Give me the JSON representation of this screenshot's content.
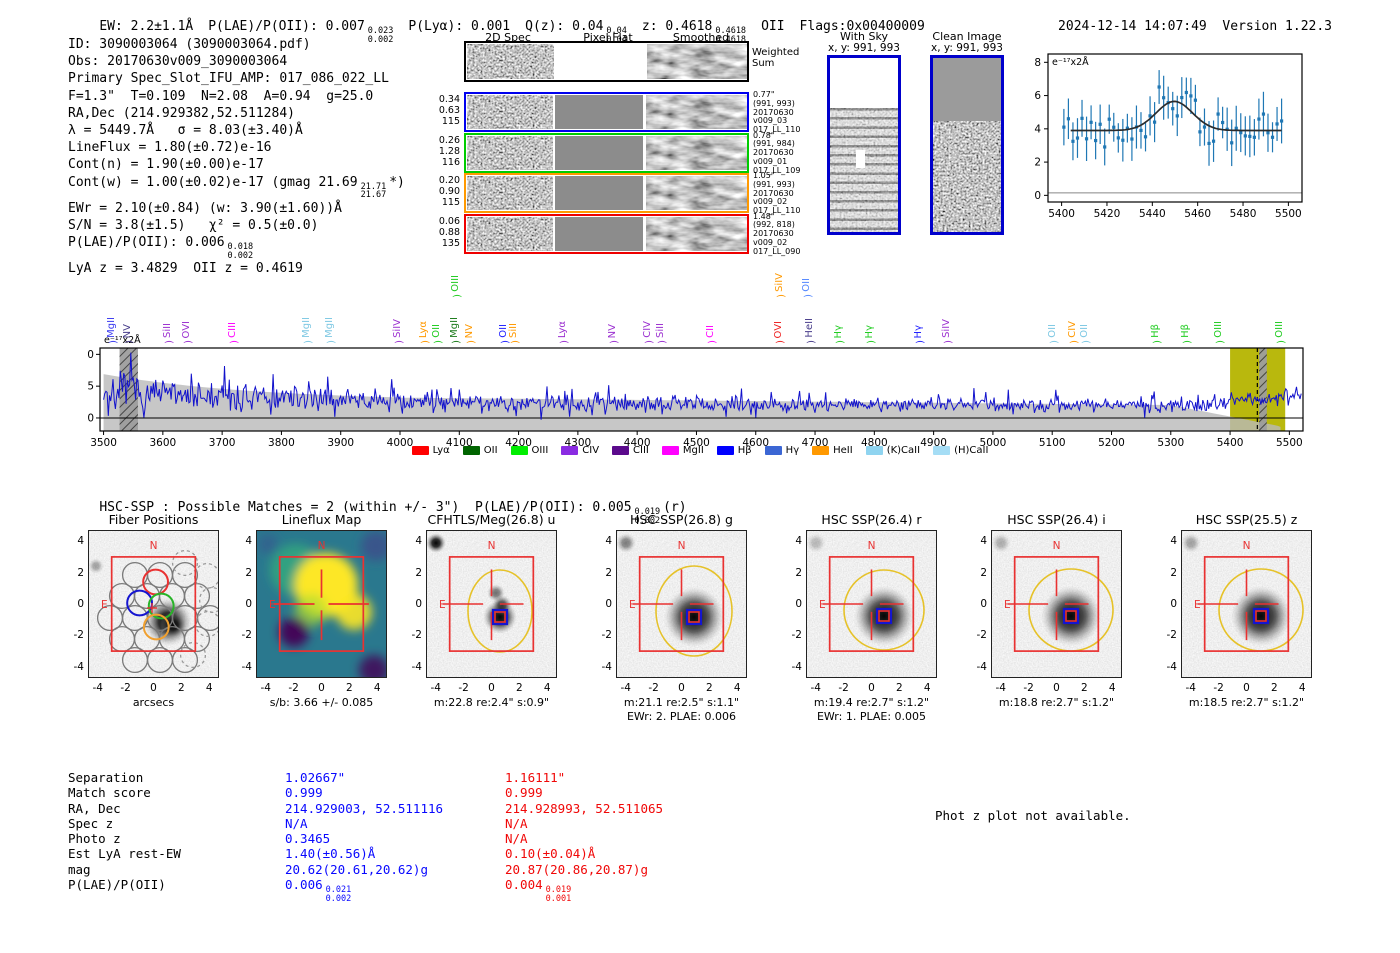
{
  "header": {
    "ew": "EW: 2.2±1.1Å",
    "plae": "P(LAE)/P(OII): 0.007",
    "plae_sup": "0.023",
    "plae_sub": "0.002",
    "plya": "P(Lyα): 0.001",
    "qz": "Q(z): 0.04",
    "qz_sup": "0.04",
    "qz_sub": "0.04",
    "z": "z: 0.4618",
    "z_sup": "0.4618",
    "z_sub": "0.4618",
    "z_class": "OII",
    "flags": "Flags:0x00400009",
    "datetime": "2024-12-14 14:07:49",
    "version": "Version 1.22.3"
  },
  "info": {
    "line1": "ID: 3090003064 (3090003064.pdf)",
    "line2": "Obs: 20170630v009_3090003064",
    "line3": "Primary Spec_Slot_IFU_AMP: 017_086_022_LL",
    "line4": "F=1.3\"  T=0.109  N=2.08  A=0.94  g=25.0",
    "line5": "RA,Dec (214.929382,52.511284)",
    "line6": "λ = 5449.7Å   σ = 8.03(±3.40)Å",
    "line7": "LineFlux = 1.80(±0.72)e-16",
    "line8": "Cont(n) = 1.90(±0.00)e-17",
    "line9a": "Cont(w) = 1.00(±0.02)e-17 (gmag 21.69",
    "line9_sup": "21.71",
    "line9_sub": "21.67",
    "line9b": "*)",
    "line10": "EWr = 2.10(±0.84) (w: 3.90(±1.60))Å",
    "line11": "S/N = 3.8(±1.5)   χ² = 0.5(±0.0)",
    "line12a": "P(LAE)/P(OII): 0.006",
    "line12_sup": "0.018",
    "line12_sub": "0.002",
    "line13": "LyA z = 3.4829  OII z = 0.4619"
  },
  "spec2d": {
    "col1": "2D Spec",
    "col2": "Pixel Flat",
    "col3": "Smoothed",
    "weighted1": "Weighted",
    "weighted2": "Sum",
    "rows": [
      {
        "color": "#0000ee",
        "left": [
          "0.34",
          "0.63",
          "115"
        ],
        "right": [
          "0.77\"",
          "(991, 993)",
          "20170630",
          "v009_03",
          "017_LL_110"
        ]
      },
      {
        "color": "#00cc00",
        "left": [
          "0.26",
          "1.28",
          "116"
        ],
        "right": [
          "0.78\"",
          "(991, 984)",
          "20170630",
          "v009_01",
          "017_LL_109"
        ]
      },
      {
        "color": "#ff9900",
        "left": [
          "0.20",
          "0.90",
          "115"
        ],
        "right": [
          "1.05\"",
          "(991, 993)",
          "20170630",
          "v009_02",
          "017_LL_110"
        ]
      },
      {
        "color": "#ee0000",
        "left": [
          "0.06",
          "0.88",
          "135"
        ],
        "right": [
          "1.48\"",
          "(992, 818)",
          "20170630",
          "v009_02",
          "017_LL_090"
        ]
      }
    ]
  },
  "sky_panels": {
    "with_sky_title": "With Sky",
    "with_sky_coords": "x, y: 991, 993",
    "clean_title": "Clean Image",
    "clean_coords": "x, y: 991, 993"
  },
  "chart_data": [
    {
      "type": "scatter",
      "name": "emission-line-fit",
      "unit_label": "e⁻¹⁷x2Å",
      "xlim": [
        5394,
        5506
      ],
      "ylim": [
        -0.4,
        8.5
      ],
      "xticks": [
        5400,
        5420,
        5440,
        5460,
        5480,
        5500
      ],
      "yticks": [
        0,
        2,
        4,
        6,
        8
      ],
      "fit": {
        "center": 5449.7,
        "sigma": 8.0,
        "continuum": 3.9,
        "peak": 5.65
      },
      "point_color": "#1f77b4",
      "curve_color": "#2b2b2b"
    },
    {
      "type": "line",
      "name": "full-spectrum",
      "unit_label": "e⁻¹⁷x2Å",
      "xlim": [
        3494,
        5523
      ],
      "ylim": [
        -2.05,
        11
      ],
      "xticks": [
        3500,
        3600,
        3700,
        3800,
        3900,
        4000,
        4100,
        4200,
        4300,
        4400,
        4500,
        4600,
        4700,
        4800,
        4900,
        5000,
        5100,
        5200,
        5300,
        5400,
        5500
      ],
      "yticks": [
        0,
        5,
        10
      ],
      "line_color": "#1212cc",
      "band_color": "#b9b9b9",
      "highlight": {
        "x0": 5400,
        "x1": 5493,
        "color": "#b5b400"
      },
      "hatch_bands": [
        [
          3527,
          3558
        ],
        [
          5449,
          5462
        ]
      ],
      "dashed_line": 5446,
      "markers": [
        [
          3520,
          "MgII",
          "#3a3af0",
          0
        ],
        [
          3547,
          "NV",
          "#483d8b",
          0
        ],
        [
          3614,
          "SiII",
          "#9b30d0",
          0
        ],
        [
          3645,
          "OVI",
          "#9b30d0",
          0
        ],
        [
          3723,
          "CIII",
          "#ff00ff",
          0
        ],
        [
          3848,
          "MgII",
          "#7ec8e3",
          0
        ],
        [
          3887,
          "MgII",
          "#7ec8e3",
          0
        ],
        [
          4001,
          "SiIV",
          "#9b30d0",
          0
        ],
        [
          4045,
          "Lyα",
          "#ff9900",
          0
        ],
        [
          4067,
          "OII",
          "#22cc22",
          0
        ],
        [
          4100,
          "OIII",
          "#22cc22",
          1
        ],
        [
          4098,
          "MgII",
          "#1a7a1a",
          0
        ],
        [
          4123,
          "NV",
          "#ff9900",
          0
        ],
        [
          4180,
          "OII",
          "#2222ff",
          0
        ],
        [
          4198,
          "SiII",
          "#ff9900",
          0
        ],
        [
          4280,
          "Lyα",
          "#9b30d0",
          0
        ],
        [
          4365,
          "NV",
          "#9b30d0",
          0
        ],
        [
          4423,
          "CIV",
          "#9b30d0",
          0
        ],
        [
          4446,
          "SiII",
          "#9b30d0",
          0
        ],
        [
          4529,
          "CII",
          "#ff00ff",
          0
        ],
        [
          4645,
          "OVI",
          "#ee2222",
          0
        ],
        [
          4646,
          "SiIV",
          "#ff9900",
          1
        ],
        [
          4692,
          "OII",
          "#5588ff",
          1
        ],
        [
          4697,
          "HeII",
          "#483d8b",
          0
        ],
        [
          4745,
          "Hγ",
          "#22cc22",
          0
        ],
        [
          4797,
          "Hγ",
          "#22cc22",
          0
        ],
        [
          4880,
          "Hγ",
          "#2222ff",
          0
        ],
        [
          4928,
          "SiIV",
          "#9b30d0",
          0
        ],
        [
          5107,
          "OII",
          "#7ec8e3",
          0
        ],
        [
          5140,
          "CIV",
          "#ff9900",
          0
        ],
        [
          5160,
          "OII",
          "#7ec8e3",
          0
        ],
        [
          5280,
          "Hβ",
          "#22cc22",
          0
        ],
        [
          5331,
          "Hβ",
          "#22cc22",
          0
        ],
        [
          5386,
          "OIII",
          "#22cc22",
          0
        ],
        [
          5490,
          "OIII",
          "#22cc22",
          0
        ]
      ],
      "legend": [
        [
          "Lyα",
          "#ff0000"
        ],
        [
          "OII",
          "#006400"
        ],
        [
          "OIII",
          "#00ee00"
        ],
        [
          "CIV",
          "#8a2be2"
        ],
        [
          "CIII",
          "#5b0a8c"
        ],
        [
          "MgII",
          "#ff00ff"
        ],
        [
          "Hβ",
          "#0000ff"
        ],
        [
          "Hγ",
          "#3b66d4"
        ],
        [
          "HeII",
          "#ff9900"
        ],
        [
          "(K)CaII",
          "#8fd4f0"
        ],
        [
          "(H)CaII",
          "#a5ddf5"
        ]
      ]
    }
  ],
  "hsc": {
    "prefix": "HSC-SSP : Possible Matches = 2 (within +/- 3\")",
    "plae": "P(LAE)/P(OII): 0.005",
    "sup": "0.019",
    "sub": "0.002",
    "tail": "(r)"
  },
  "cutouts": [
    {
      "title": "Fiber Positions",
      "caption": "arcsecs",
      "type": "fiber"
    },
    {
      "title": "Lineflux Map",
      "caption": "s/b: 3.66 +/- 0.085",
      "type": "lineflux"
    },
    {
      "title": "CFHTLS/Meg(26.8) u",
      "caption": "m:22.8  re:2.4\"  s:0.9\"",
      "type": "img"
    },
    {
      "title": "HSC SSP(26.8) g",
      "caption": "m:21.1  re:2.5\"  s:1.1\"",
      "caption2": "EWr: 2. PLAE: 0.006",
      "type": "img"
    },
    {
      "title": "HSC SSP(26.4) r",
      "caption": "m:19.4  re:2.7\"  s:1.2\"",
      "caption2": "EWr: 1. PLAE: 0.005",
      "type": "img"
    },
    {
      "title": "HSC SSP(26.4) i",
      "caption": "m:18.8  re:2.7\"  s:1.2\"",
      "type": "img"
    },
    {
      "title": "HSC SSP(25.5) z",
      "caption": "m:18.5  re:2.7\"  s:1.2\"",
      "type": "img"
    }
  ],
  "cutout_ticks": [
    "-4",
    "-2",
    "0",
    "2",
    "4"
  ],
  "compass": {
    "n": "N",
    "e": "E"
  },
  "match_table": {
    "rows": [
      {
        "label": "Separation",
        "blue": "1.02667\"",
        "red": "1.16111\""
      },
      {
        "label": "Match score",
        "blue": "0.999",
        "red": "0.999"
      },
      {
        "label": "RA, Dec",
        "blue": "214.929003, 52.511116",
        "red": "214.928993, 52.511065"
      },
      {
        "label": "Spec z",
        "blue": "N/A",
        "red": "N/A"
      },
      {
        "label": "Photo z",
        "blue": "0.3465",
        "red": "N/A"
      },
      {
        "label": "Est LyA rest-EW",
        "blue": "1.40(±0.56)Å",
        "red": "0.10(±0.04)Å"
      },
      {
        "label": "mag",
        "blue": "20.62(20.61,20.62)g",
        "red": "20.87(20.86,20.87)g"
      },
      {
        "label": "P(LAE)/P(OII)",
        "blue": "0.006",
        "blue_sup": "0.021",
        "blue_sub": "0.002",
        "red": "0.004",
        "red_sup": "0.019",
        "red_sub": "0.001"
      }
    ],
    "note": "Phot z plot not available."
  }
}
